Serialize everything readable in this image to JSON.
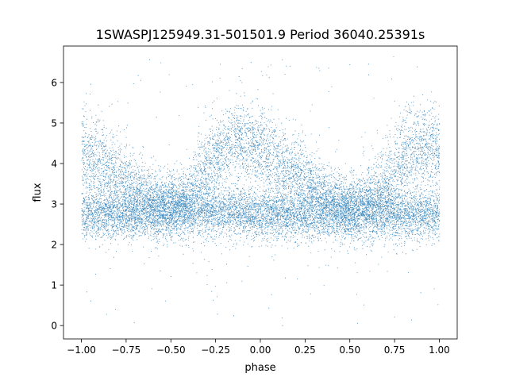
{
  "chart_data": {
    "type": "scatter",
    "title": "1SWASPJ125949.31-501501.9 Period 36040.25391s",
    "xlabel": "phase",
    "ylabel": "flux",
    "xlim": [
      -1.1,
      1.1
    ],
    "ylim": [
      -0.33,
      6.9
    ],
    "xticks": [
      -1.0,
      -0.75,
      -0.5,
      -0.25,
      0.0,
      0.25,
      0.5,
      0.75,
      1.0
    ],
    "xtick_labels": [
      "−1.00",
      "−0.75",
      "−0.50",
      "−0.25",
      "0.00",
      "0.25",
      "0.50",
      "0.75",
      "1.00"
    ],
    "yticks": [
      0,
      1,
      2,
      3,
      4,
      5,
      6
    ],
    "ytick_labels": [
      "0",
      "1",
      "2",
      "3",
      "4",
      "5",
      "6"
    ],
    "grid": false,
    "marker_color": "#1f77b4",
    "series": [
      {
        "branch": "baseline",
        "points_per_unit_phase": 4500,
        "x": [
          -1.0,
          -0.75,
          -0.5,
          -0.25,
          0.0,
          0.25,
          0.5,
          0.75,
          1.0
        ],
        "y_center": [
          2.75,
          2.75,
          2.85,
          2.85,
          2.75,
          2.75,
          2.8,
          2.75,
          2.75
        ],
        "y_spread": [
          0.3,
          0.3,
          0.35,
          0.3,
          0.3,
          0.3,
          0.35,
          0.3,
          0.3
        ]
      },
      {
        "branch": "hump",
        "points_per_unit_phase": 3500,
        "x": [
          -1.0,
          -0.9,
          -0.75,
          -0.6,
          -0.45,
          -0.3,
          -0.15,
          0.0,
          0.1,
          0.25,
          0.4,
          0.55,
          0.7,
          0.85,
          1.0
        ],
        "y_center": [
          4.2,
          4.0,
          3.5,
          3.1,
          2.95,
          3.9,
          4.6,
          4.4,
          4.0,
          3.6,
          3.1,
          2.9,
          3.5,
          4.4,
          4.3
        ],
        "y_spread": [
          0.6,
          0.55,
          0.45,
          0.4,
          0.4,
          0.5,
          0.5,
          0.5,
          0.5,
          0.45,
          0.4,
          0.4,
          0.5,
          0.55,
          0.6
        ]
      }
    ],
    "outliers": {
      "count": 220,
      "y_range": [
        0.0,
        6.7
      ]
    }
  }
}
